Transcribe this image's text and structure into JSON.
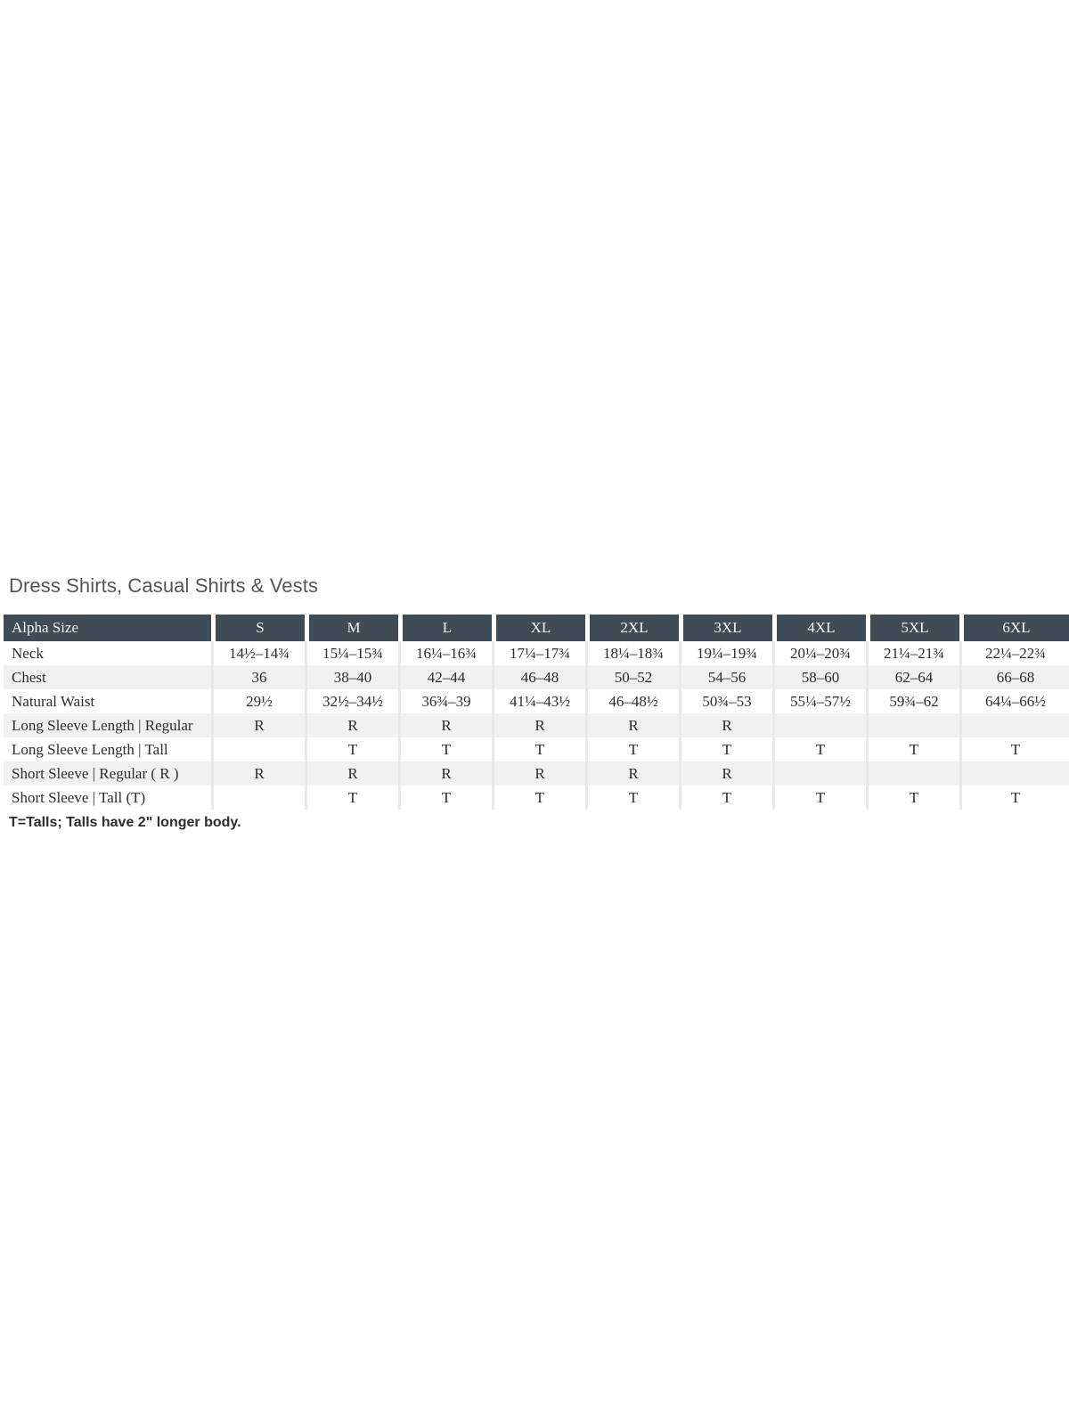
{
  "page": {
    "title": "Dress Shirts, Casual Shirts & Vests",
    "footnote": "T=Talls; Talls have 2\" longer body."
  },
  "colors": {
    "header_bg": "#3F4C55",
    "header_text": "#F4F5F5",
    "row_stripe": "#F2F1EF",
    "body_text": "#2D2D2D",
    "title_text": "#555555"
  },
  "size_chart": {
    "header_label": "Alpha Size",
    "columns": [
      "S",
      "M",
      "L",
      "XL",
      "2XL",
      "3XL",
      "4XL",
      "5XL",
      "6XL"
    ],
    "rows": [
      {
        "label": "Neck",
        "values": [
          "14½–14¾",
          "15¼–15¾",
          "16¼–16¾",
          "17¼–17¾",
          "18¼–18¾",
          "19¼–19¾",
          "20¼–20¾",
          "21¼–21¾",
          "22¼–22¾"
        ]
      },
      {
        "label": "Chest",
        "values": [
          "36",
          "38–40",
          "42–44",
          "46–48",
          "50–52",
          "54–56",
          "58–60",
          "62–64",
          "66–68"
        ]
      },
      {
        "label": "Natural Waist",
        "values": [
          "29½",
          "32½–34½",
          "36¾–39",
          "41¼–43½",
          "46–48½",
          "50¾–53",
          "55¼–57½",
          "59¾–62",
          "64¼–66½"
        ]
      },
      {
        "label": "Long Sleeve Length  |  Regular",
        "values": [
          "R",
          "R",
          "R",
          "R",
          "R",
          "R",
          "",
          "",
          ""
        ]
      },
      {
        "label": "Long Sleeve Length  |  Tall",
        "values": [
          "",
          "T",
          "T",
          "T",
          "T",
          "T",
          "T",
          "T",
          "T"
        ]
      },
      {
        "label": "Short Sleeve  |  Regular ( R )",
        "values": [
          "R",
          "R",
          "R",
          "R",
          "R",
          "R",
          "",
          "",
          ""
        ]
      },
      {
        "label": "Short Sleeve  |  Tall (T)",
        "values": [
          "",
          "T",
          "T",
          "T",
          "T",
          "T",
          "T",
          "T",
          "T"
        ]
      }
    ]
  }
}
